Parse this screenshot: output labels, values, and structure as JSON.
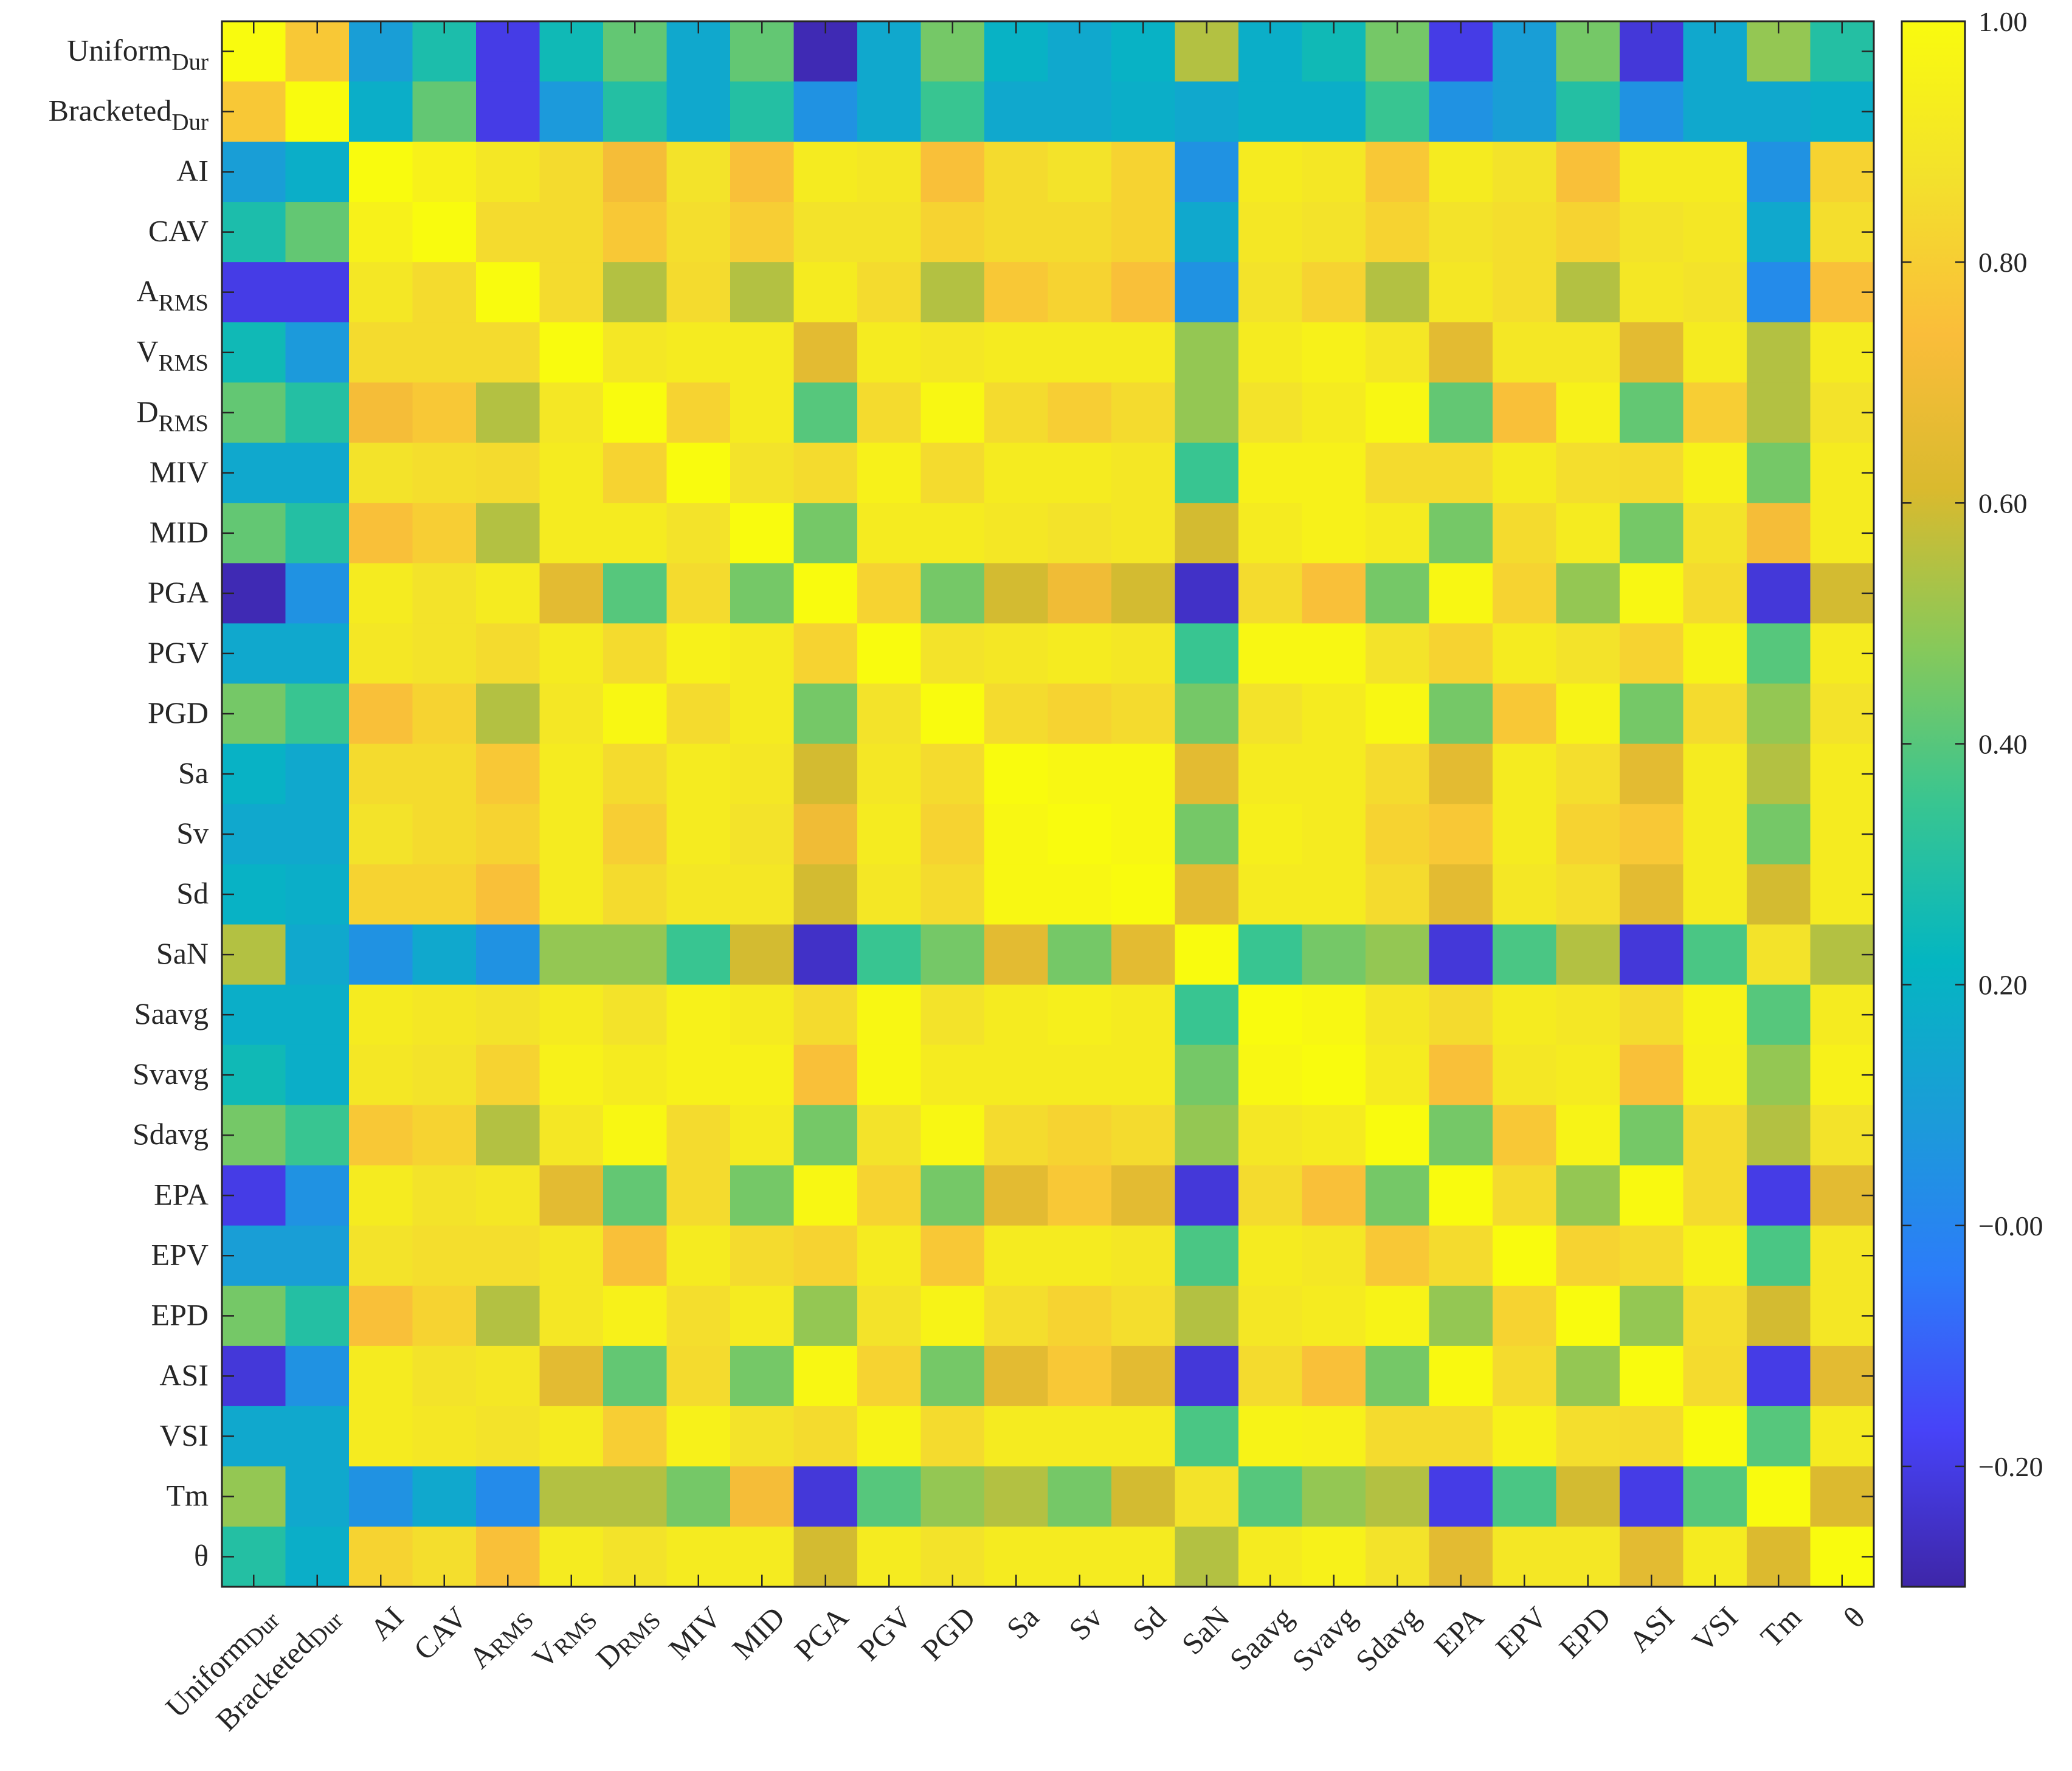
{
  "chart_data": {
    "type": "heatmap",
    "title": "",
    "xlabel": "",
    "ylabel": "",
    "labels": [
      {
        "base": "Uniform",
        "sub": "Dur"
      },
      {
        "base": "Bracketed",
        "sub": "Dur"
      },
      {
        "base": "AI",
        "sub": ""
      },
      {
        "base": "CAV",
        "sub": ""
      },
      {
        "base": "A",
        "sub": "RMS"
      },
      {
        "base": "V",
        "sub": "RMS"
      },
      {
        "base": "D",
        "sub": "RMS"
      },
      {
        "base": "MIV",
        "sub": ""
      },
      {
        "base": "MID",
        "sub": ""
      },
      {
        "base": "PGA",
        "sub": ""
      },
      {
        "base": "PGV",
        "sub": ""
      },
      {
        "base": "PGD",
        "sub": ""
      },
      {
        "base": "Sa",
        "sub": ""
      },
      {
        "base": "Sv",
        "sub": ""
      },
      {
        "base": "Sd",
        "sub": ""
      },
      {
        "base": "SaN",
        "sub": ""
      },
      {
        "base": "Saavg",
        "sub": ""
      },
      {
        "base": "Svavg",
        "sub": ""
      },
      {
        "base": "Sdavg",
        "sub": ""
      },
      {
        "base": "EPA",
        "sub": ""
      },
      {
        "base": "EPV",
        "sub": ""
      },
      {
        "base": "EPD",
        "sub": ""
      },
      {
        "base": "ASI",
        "sub": ""
      },
      {
        "base": "VSI",
        "sub": ""
      },
      {
        "base": "Tm",
        "sub": ""
      },
      {
        "base": "θ",
        "sub": ""
      }
    ],
    "values": [
      [
        1.0,
        0.78,
        0.1,
        0.28,
        -0.2,
        0.25,
        0.42,
        0.15,
        0.42,
        -0.28,
        0.15,
        0.45,
        0.2,
        0.15,
        0.2,
        0.55,
        0.18,
        0.25,
        0.45,
        -0.2,
        0.1,
        0.45,
        -0.22,
        0.15,
        0.5,
        0.3
      ],
      [
        0.78,
        1.0,
        0.18,
        0.42,
        -0.2,
        0.08,
        0.3,
        0.15,
        0.3,
        0.05,
        0.15,
        0.35,
        0.15,
        0.15,
        0.18,
        0.15,
        0.18,
        0.18,
        0.35,
        0.05,
        0.1,
        0.3,
        0.05,
        0.15,
        0.15,
        0.18
      ],
      [
        0.1,
        0.18,
        1.0,
        0.95,
        0.9,
        0.85,
        0.72,
        0.88,
        0.75,
        0.92,
        0.9,
        0.75,
        0.85,
        0.88,
        0.82,
        0.05,
        0.92,
        0.9,
        0.78,
        0.92,
        0.88,
        0.75,
        0.92,
        0.92,
        0.05,
        0.82
      ],
      [
        0.28,
        0.42,
        0.95,
        1.0,
        0.85,
        0.85,
        0.78,
        0.86,
        0.8,
        0.88,
        0.88,
        0.82,
        0.85,
        0.85,
        0.82,
        0.15,
        0.9,
        0.88,
        0.82,
        0.88,
        0.86,
        0.82,
        0.88,
        0.9,
        0.15,
        0.86
      ],
      [
        -0.2,
        -0.2,
        0.9,
        0.85,
        1.0,
        0.85,
        0.55,
        0.85,
        0.55,
        0.92,
        0.85,
        0.55,
        0.78,
        0.82,
        0.75,
        0.05,
        0.88,
        0.82,
        0.55,
        0.9,
        0.86,
        0.55,
        0.9,
        0.88,
        0.02,
        0.75
      ],
      [
        0.25,
        0.08,
        0.85,
        0.85,
        0.85,
        1.0,
        0.9,
        0.92,
        0.92,
        0.65,
        0.92,
        0.9,
        0.92,
        0.92,
        0.92,
        0.5,
        0.92,
        0.95,
        0.9,
        0.65,
        0.9,
        0.9,
        0.65,
        0.92,
        0.55,
        0.92
      ],
      [
        0.42,
        0.3,
        0.72,
        0.78,
        0.55,
        0.9,
        1.0,
        0.82,
        0.92,
        0.4,
        0.85,
        0.98,
        0.85,
        0.8,
        0.85,
        0.5,
        0.88,
        0.92,
        0.98,
        0.42,
        0.75,
        0.95,
        0.42,
        0.8,
        0.55,
        0.88
      ],
      [
        0.15,
        0.15,
        0.88,
        0.86,
        0.85,
        0.92,
        0.82,
        1.0,
        0.88,
        0.85,
        0.95,
        0.85,
        0.92,
        0.92,
        0.9,
        0.35,
        0.95,
        0.95,
        0.85,
        0.85,
        0.92,
        0.86,
        0.85,
        0.95,
        0.45,
        0.92
      ],
      [
        0.42,
        0.3,
        0.75,
        0.8,
        0.55,
        0.92,
        0.92,
        0.88,
        1.0,
        0.45,
        0.92,
        0.92,
        0.9,
        0.88,
        0.9,
        0.6,
        0.92,
        0.95,
        0.92,
        0.45,
        0.85,
        0.92,
        0.45,
        0.88,
        0.72,
        0.92
      ],
      [
        -0.28,
        0.05,
        0.92,
        0.88,
        0.92,
        0.65,
        0.4,
        0.85,
        0.45,
        1.0,
        0.82,
        0.45,
        0.6,
        0.7,
        0.6,
        -0.25,
        0.85,
        0.75,
        0.45,
        0.98,
        0.82,
        0.5,
        0.98,
        0.85,
        -0.22,
        0.6
      ],
      [
        0.15,
        0.15,
        0.9,
        0.88,
        0.85,
        0.92,
        0.85,
        0.95,
        0.92,
        0.82,
        1.0,
        0.88,
        0.9,
        0.92,
        0.9,
        0.35,
        0.98,
        0.98,
        0.88,
        0.82,
        0.92,
        0.88,
        0.82,
        0.96,
        0.4,
        0.92
      ],
      [
        0.45,
        0.35,
        0.75,
        0.82,
        0.55,
        0.9,
        0.98,
        0.85,
        0.92,
        0.45,
        0.88,
        1.0,
        0.85,
        0.82,
        0.85,
        0.45,
        0.88,
        0.92,
        0.98,
        0.45,
        0.78,
        0.96,
        0.45,
        0.85,
        0.5,
        0.88
      ],
      [
        0.2,
        0.15,
        0.85,
        0.85,
        0.78,
        0.92,
        0.85,
        0.92,
        0.9,
        0.6,
        0.9,
        0.85,
        1.0,
        0.98,
        0.98,
        0.65,
        0.92,
        0.92,
        0.85,
        0.65,
        0.92,
        0.86,
        0.65,
        0.92,
        0.55,
        0.92
      ],
      [
        0.15,
        0.15,
        0.88,
        0.85,
        0.82,
        0.92,
        0.8,
        0.92,
        0.88,
        0.7,
        0.92,
        0.82,
        0.98,
        1.0,
        0.98,
        0.45,
        0.94,
        0.92,
        0.82,
        0.78,
        0.92,
        0.82,
        0.78,
        0.92,
        0.45,
        0.92
      ],
      [
        0.2,
        0.18,
        0.82,
        0.82,
        0.75,
        0.92,
        0.85,
        0.9,
        0.9,
        0.6,
        0.9,
        0.85,
        0.98,
        0.98,
        1.0,
        0.65,
        0.92,
        0.92,
        0.85,
        0.65,
        0.9,
        0.86,
        0.65,
        0.92,
        0.6,
        0.92
      ],
      [
        0.55,
        0.15,
        0.05,
        0.15,
        0.05,
        0.5,
        0.5,
        0.35,
        0.6,
        -0.25,
        0.35,
        0.45,
        0.65,
        0.45,
        0.65,
        1.0,
        0.35,
        0.45,
        0.5,
        -0.22,
        0.38,
        0.55,
        -0.22,
        0.38,
        0.88,
        0.55
      ],
      [
        0.18,
        0.18,
        0.92,
        0.9,
        0.88,
        0.92,
        0.88,
        0.95,
        0.92,
        0.85,
        0.98,
        0.88,
        0.92,
        0.94,
        0.92,
        0.35,
        1.0,
        0.98,
        0.9,
        0.85,
        0.92,
        0.9,
        0.85,
        0.96,
        0.4,
        0.92
      ],
      [
        0.25,
        0.18,
        0.9,
        0.88,
        0.82,
        0.95,
        0.92,
        0.95,
        0.95,
        0.75,
        0.98,
        0.92,
        0.92,
        0.92,
        0.92,
        0.45,
        0.98,
        1.0,
        0.92,
        0.75,
        0.9,
        0.92,
        0.75,
        0.95,
        0.5,
        0.95
      ],
      [
        0.45,
        0.35,
        0.78,
        0.82,
        0.55,
        0.9,
        0.98,
        0.85,
        0.92,
        0.45,
        0.88,
        0.98,
        0.85,
        0.82,
        0.85,
        0.5,
        0.9,
        0.92,
        1.0,
        0.45,
        0.78,
        0.96,
        0.45,
        0.85,
        0.55,
        0.88
      ],
      [
        -0.2,
        0.05,
        0.92,
        0.88,
        0.9,
        0.65,
        0.42,
        0.85,
        0.45,
        0.98,
        0.82,
        0.45,
        0.65,
        0.78,
        0.65,
        -0.22,
        0.85,
        0.75,
        0.45,
        1.0,
        0.85,
        0.5,
        0.99,
        0.85,
        -0.2,
        0.65
      ],
      [
        0.1,
        0.1,
        0.88,
        0.86,
        0.86,
        0.9,
        0.75,
        0.92,
        0.85,
        0.82,
        0.92,
        0.78,
        0.92,
        0.92,
        0.9,
        0.38,
        0.92,
        0.9,
        0.78,
        0.85,
        1.0,
        0.82,
        0.85,
        0.95,
        0.38,
        0.9
      ],
      [
        0.45,
        0.3,
        0.75,
        0.82,
        0.55,
        0.9,
        0.95,
        0.86,
        0.92,
        0.5,
        0.88,
        0.96,
        0.86,
        0.82,
        0.86,
        0.55,
        0.9,
        0.92,
        0.96,
        0.5,
        0.82,
        1.0,
        0.5,
        0.86,
        0.6,
        0.9
      ],
      [
        -0.22,
        0.05,
        0.92,
        0.88,
        0.9,
        0.65,
        0.42,
        0.85,
        0.45,
        0.98,
        0.82,
        0.45,
        0.65,
        0.78,
        0.65,
        -0.22,
        0.85,
        0.75,
        0.45,
        0.99,
        0.85,
        0.5,
        1.0,
        0.85,
        -0.2,
        0.65
      ],
      [
        0.15,
        0.15,
        0.92,
        0.9,
        0.88,
        0.92,
        0.8,
        0.95,
        0.88,
        0.85,
        0.96,
        0.85,
        0.92,
        0.92,
        0.92,
        0.38,
        0.96,
        0.95,
        0.85,
        0.85,
        0.95,
        0.86,
        0.85,
        1.0,
        0.4,
        0.92
      ],
      [
        0.5,
        0.15,
        0.05,
        0.15,
        0.02,
        0.55,
        0.55,
        0.45,
        0.72,
        -0.22,
        0.4,
        0.5,
        0.55,
        0.45,
        0.6,
        0.88,
        0.4,
        0.5,
        0.55,
        -0.2,
        0.38,
        0.6,
        -0.2,
        0.4,
        1.0,
        0.62
      ],
      [
        0.3,
        0.18,
        0.82,
        0.86,
        0.75,
        0.92,
        0.88,
        0.92,
        0.92,
        0.6,
        0.92,
        0.88,
        0.92,
        0.92,
        0.92,
        0.55,
        0.92,
        0.95,
        0.88,
        0.65,
        0.9,
        0.9,
        0.65,
        0.92,
        0.62,
        1.0
      ]
    ],
    "colorbar": {
      "min": -0.3,
      "max": 1.0,
      "ticks": [
        1.0,
        0.8,
        0.6,
        0.4,
        0.2,
        0.0,
        -0.2
      ],
      "tick_labels": [
        "1.00",
        "0.80",
        "0.60",
        "0.40",
        "0.20",
        "−0.00",
        "−0.20"
      ],
      "colormap": [
        "#3e26a8",
        "#4743f8",
        "#2c7cf9",
        "#1b9cd8",
        "#04b6c1",
        "#38c591",
        "#87c95a",
        "#d9ba2e",
        "#fabd3a",
        "#f3e12c",
        "#f9fb0e"
      ]
    }
  }
}
